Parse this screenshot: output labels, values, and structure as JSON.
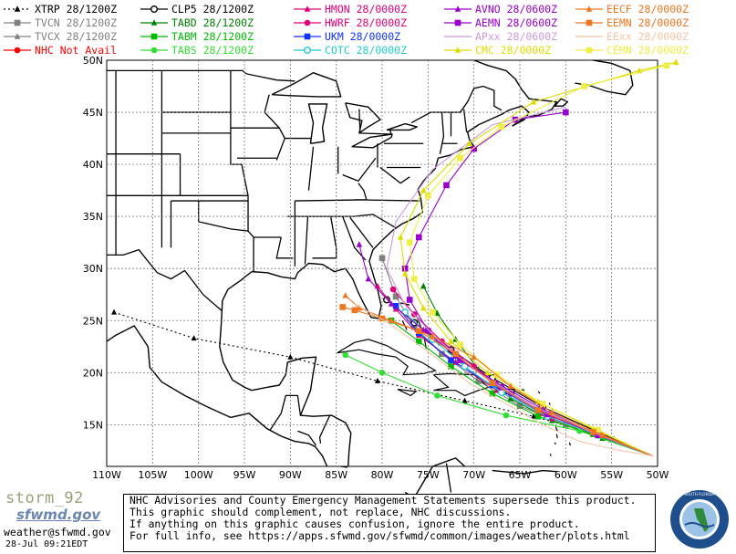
{
  "legend": [
    {
      "id": "xtrp",
      "label": "XTRP 28/1200Z",
      "color": "#000000",
      "marker": "triangle",
      "dash": true
    },
    {
      "id": "tvcn",
      "label": "TVCN 28/1200Z",
      "color": "#808080",
      "marker": "square"
    },
    {
      "id": "tvcx",
      "label": "TVCX 28/1200Z",
      "color": "#808080",
      "marker": "triangle"
    },
    {
      "id": "nhc",
      "label": "NHC Not Avail",
      "color": "#ff0000",
      "marker": "circle"
    },
    {
      "id": "clp5",
      "label": "CLP5 28/1200Z",
      "color": "#000000",
      "marker": "ring"
    },
    {
      "id": "tabd",
      "label": "TABD 28/1200Z",
      "color": "#008000",
      "marker": "triangle"
    },
    {
      "id": "tabm",
      "label": "TABM 28/1200Z",
      "color": "#00bb00",
      "marker": "square"
    },
    {
      "id": "tabs",
      "label": "TABS 28/1200Z",
      "color": "#33dd33",
      "marker": "circle"
    },
    {
      "id": "hmon",
      "label": "HMON 28/0000Z",
      "color": "#dd0077",
      "marker": "triangle"
    },
    {
      "id": "hwrf",
      "label": "HWRF 28/0000Z",
      "color": "#dd0077",
      "marker": "circle"
    },
    {
      "id": "ukm",
      "label": "UKM 28/0000Z",
      "color": "#1133ff",
      "marker": "square"
    },
    {
      "id": "cotc",
      "label": "COTC 28/0000Z",
      "color": "#22cccc",
      "marker": "ring"
    },
    {
      "id": "avno",
      "label": "AVNO 28/0600Z",
      "color": "#9900cc",
      "marker": "triangle"
    },
    {
      "id": "aemn",
      "label": "AEMN 28/0600Z",
      "color": "#9900cc",
      "marker": "square"
    },
    {
      "id": "apxx",
      "label": "APxx 28/0600Z",
      "color": "#cc99dd",
      "marker": "none"
    },
    {
      "id": "cmc",
      "label": "CMC 28/0000Z",
      "color": "#dddd00",
      "marker": "triangle"
    },
    {
      "id": "eecf",
      "label": "EECF 28/0000Z",
      "color": "#ee7722",
      "marker": "triangle"
    },
    {
      "id": "eemn",
      "label": "EEMN 28/0000Z",
      "color": "#ee7722",
      "marker": "square"
    },
    {
      "id": "eexx",
      "label": "EExx 28/0000Z",
      "color": "#f3c4a4",
      "marker": "none"
    },
    {
      "id": "cemn",
      "label": "CEMN 28/0000Z",
      "color": "#eeee44",
      "marker": "square"
    }
  ],
  "axes": {
    "lat_labels": [
      "50N",
      "45N",
      "40N",
      "35N",
      "30N",
      "25N",
      "20N",
      "15N"
    ],
    "lon_labels": [
      "110W",
      "105W",
      "100W",
      "95W",
      "90W",
      "85W",
      "80W",
      "75W",
      "70W",
      "65W",
      "60W",
      "55W",
      "50W"
    ]
  },
  "tracks": [
    {
      "model": "xtrp",
      "color": "#000000",
      "dash": true,
      "marker": "triangle",
      "points": [
        [
          -109.2,
          25.8
        ],
        [
          -100.5,
          23.3
        ],
        [
          -90.0,
          21.5
        ],
        [
          -80.5,
          19.2
        ],
        [
          -71.0,
          17.3
        ],
        [
          -63.5,
          15.8
        ],
        [
          -57.0,
          14.2
        ]
      ]
    },
    {
      "model": "tvcn",
      "color": "#808080",
      "marker": "square",
      "points": [
        [
          -50.5,
          12.0
        ],
        [
          -55.0,
          13.6
        ],
        [
          -60.0,
          15.0
        ],
        [
          -65.0,
          16.8
        ],
        [
          -69.5,
          19.2
        ],
        [
          -73.5,
          21.8
        ],
        [
          -76.5,
          24.4
        ],
        [
          -78.5,
          27.3
        ],
        [
          -80.0,
          31.0
        ]
      ]
    },
    {
      "model": "clp5",
      "color": "#000000",
      "marker": "ring",
      "points": [
        [
          -50.5,
          12.0
        ],
        [
          -56.5,
          14.3
        ],
        [
          -62.5,
          16.7
        ],
        [
          -68.0,
          19.5
        ],
        [
          -72.5,
          22.2
        ],
        [
          -76.5,
          24.8
        ],
        [
          -79.5,
          27.0
        ]
      ]
    },
    {
      "model": "tabd",
      "color": "#008000",
      "marker": "triangle",
      "points": [
        [
          -50.5,
          12.0
        ],
        [
          -56.0,
          13.7
        ],
        [
          -61.5,
          15.4
        ],
        [
          -66.0,
          17.5
        ],
        [
          -69.5,
          20.3
        ],
        [
          -72.0,
          23.2
        ],
        [
          -74.0,
          25.7
        ],
        [
          -75.5,
          28.3
        ]
      ]
    },
    {
      "model": "tabm",
      "color": "#00bb00",
      "marker": "square",
      "points": [
        [
          -50.5,
          12.0
        ],
        [
          -57.0,
          14.1
        ],
        [
          -63.0,
          15.8
        ],
        [
          -68.0,
          18.0
        ],
        [
          -72.5,
          20.6
        ],
        [
          -76.0,
          23.0
        ],
        [
          -79.0,
          25.0
        ]
      ]
    },
    {
      "model": "tabs",
      "color": "#33dd33",
      "marker": "circle",
      "points": [
        [
          -50.5,
          12.0
        ],
        [
          -58.5,
          14.4
        ],
        [
          -66.5,
          15.9
        ],
        [
          -74.0,
          17.8
        ],
        [
          -80.0,
          20.0
        ],
        [
          -84.0,
          21.7
        ]
      ]
    },
    {
      "model": "hmon",
      "color": "#dd0077",
      "marker": "triangle",
      "points": [
        [
          -50.5,
          12.0
        ],
        [
          -56.0,
          14.0
        ],
        [
          -62.5,
          16.1
        ],
        [
          -67.5,
          18.3
        ],
        [
          -72.0,
          21.0
        ],
        [
          -76.0,
          23.6
        ],
        [
          -78.5,
          26.1
        ],
        [
          -80.5,
          28.3
        ]
      ]
    },
    {
      "model": "hwrf",
      "color": "#dd0077",
      "marker": "circle",
      "points": [
        [
          -50.5,
          12.0
        ],
        [
          -56.0,
          14.0
        ],
        [
          -61.5,
          15.6
        ],
        [
          -66.0,
          18.0
        ],
        [
          -70.0,
          20.6
        ],
        [
          -73.5,
          23.0
        ],
        [
          -76.5,
          25.6
        ],
        [
          -78.8,
          28.0
        ]
      ]
    },
    {
      "model": "ukm",
      "color": "#1133ff",
      "marker": "square",
      "points": [
        [
          -50.5,
          12.0
        ],
        [
          -57.0,
          14.3
        ],
        [
          -63.0,
          16.4
        ],
        [
          -68.0,
          18.8
        ],
        [
          -72.5,
          21.2
        ],
        [
          -76.0,
          23.8
        ],
        [
          -78.5,
          26.4
        ]
      ]
    },
    {
      "model": "cotc",
      "color": "#22cccc",
      "marker": "ring",
      "points": [
        [
          -50.5,
          12.0
        ],
        [
          -56.5,
          14.0
        ],
        [
          -62.0,
          15.8
        ],
        [
          -67.0,
          18.1
        ],
        [
          -71.0,
          20.6
        ],
        [
          -74.5,
          23.2
        ],
        [
          -77.5,
          25.8
        ]
      ]
    },
    {
      "model": "avno",
      "color": "#9900cc",
      "marker": "triangle",
      "points": [
        [
          -50.5,
          12.0
        ],
        [
          -57.0,
          14.2
        ],
        [
          -62.5,
          16.5
        ],
        [
          -67.5,
          19.0
        ],
        [
          -72.0,
          21.6
        ],
        [
          -75.5,
          24.1
        ],
        [
          -79.0,
          26.6
        ],
        [
          -81.5,
          29.0
        ],
        [
          -82.5,
          32.3
        ]
      ]
    },
    {
      "model": "aemn",
      "color": "#9900cc",
      "marker": "square",
      "points": [
        [
          -50.5,
          12.0
        ],
        [
          -56.5,
          14.0
        ],
        [
          -62.0,
          16.0
        ],
        [
          -67.0,
          18.6
        ],
        [
          -71.5,
          21.2
        ],
        [
          -75.0,
          24.0
        ],
        [
          -77.0,
          27.0
        ],
        [
          -77.5,
          30.0
        ],
        [
          -76.0,
          33.0
        ],
        [
          -73.0,
          38.0
        ],
        [
          -70.0,
          41.5
        ],
        [
          -65.5,
          44.3
        ],
        [
          -60.0,
          45.0
        ]
      ]
    },
    {
      "model": "apxx",
      "color": "#cc99dd",
      "marker": "none",
      "points": [
        [
          -50.5,
          12.0
        ],
        [
          -57.5,
          14.4
        ],
        [
          -64.0,
          17.0
        ],
        [
          -69.5,
          20.0
        ],
        [
          -74.0,
          23.2
        ],
        [
          -77.5,
          26.5
        ],
        [
          -79.5,
          30.0
        ],
        [
          -78.5,
          34.5
        ],
        [
          -74.5,
          39.5
        ],
        [
          -68.0,
          43.8
        ],
        [
          -60.0,
          45.5
        ]
      ]
    },
    {
      "model": "cmc",
      "color": "#dddd00",
      "marker": "triangle",
      "points": [
        [
          -50.5,
          12.0
        ],
        [
          -57.0,
          14.6
        ],
        [
          -63.0,
          17.2
        ],
        [
          -68.5,
          20.0
        ],
        [
          -72.5,
          23.0
        ],
        [
          -75.5,
          26.2
        ],
        [
          -77.5,
          29.5
        ],
        [
          -78.0,
          33.0
        ],
        [
          -75.5,
          37.5
        ],
        [
          -70.5,
          42.0
        ],
        [
          -63.5,
          46.0
        ],
        [
          -52.0,
          49.0
        ],
        [
          -48.0,
          49.8
        ]
      ]
    },
    {
      "model": "cemn",
      "color": "#eeee44",
      "marker": "square",
      "points": [
        [
          -50.5,
          12.0
        ],
        [
          -56.5,
          14.5
        ],
        [
          -62.5,
          17.0
        ],
        [
          -67.5,
          19.8
        ],
        [
          -71.5,
          22.7
        ],
        [
          -74.5,
          25.8
        ],
        [
          -76.5,
          29.0
        ],
        [
          -77.0,
          32.5
        ],
        [
          -75.0,
          37.0
        ],
        [
          -71.5,
          40.6
        ],
        [
          -67.0,
          43.6
        ],
        [
          -58.0,
          47.5
        ],
        [
          -49.0,
          49.5
        ]
      ]
    },
    {
      "model": "eecf",
      "color": "#ee7722",
      "marker": "triangle",
      "points": [
        [
          -50.5,
          12.0
        ],
        [
          -56.0,
          14.0
        ],
        [
          -61.5,
          16.2
        ],
        [
          -66.0,
          18.7
        ],
        [
          -70.0,
          21.5
        ],
        [
          -74.5,
          23.5
        ],
        [
          -79.0,
          25.0
        ],
        [
          -82.5,
          26.2
        ],
        [
          -84.0,
          27.4
        ]
      ]
    },
    {
      "model": "eemn",
      "color": "#ee7722",
      "marker": "square",
      "points": [
        [
          -50.5,
          12.0
        ],
        [
          -57.0,
          14.3
        ],
        [
          -63.0,
          16.4
        ],
        [
          -68.0,
          19.0
        ],
        [
          -72.0,
          21.8
        ],
        [
          -76.0,
          24.0
        ],
        [
          -80.0,
          25.2
        ],
        [
          -83.0,
          26.0
        ],
        [
          -84.3,
          26.3
        ]
      ]
    },
    {
      "model": "eexx",
      "color": "#f3c4a4",
      "marker": "none",
      "points": [
        [
          -50.5,
          12.0
        ],
        [
          -54.5,
          12.6
        ],
        [
          -58.5,
          13.4
        ],
        [
          -62.5,
          15.0
        ],
        [
          -66.5,
          17.0
        ],
        [
          -70.5,
          19.0
        ],
        [
          -75.0,
          22.0
        ],
        [
          -79.0,
          24.6
        ],
        [
          -83.0,
          26.6
        ]
      ]
    }
  ],
  "branding": {
    "storm_name": "storm_92",
    "sfwmd_logo_text": "sfwmd.gov",
    "email": "weather@sfwmd.gov",
    "timestamp": "28-Jul 09:21EDT"
  },
  "disclaimer": [
    "NHC Advisories and County Emergency Management Statements supersede this product.",
    "This graphic should complement, not replace, NHC discussions.",
    "If anything on this graphic causes confusion, ignore the entire product.",
    "For full info, see  https://apps.sfwmd.gov/sfwmd/common/images/weather/plots.html"
  ],
  "seal": {
    "top_text": "SOUTH FLORIDA WATER MANAGEMENT DISTRICT"
  }
}
